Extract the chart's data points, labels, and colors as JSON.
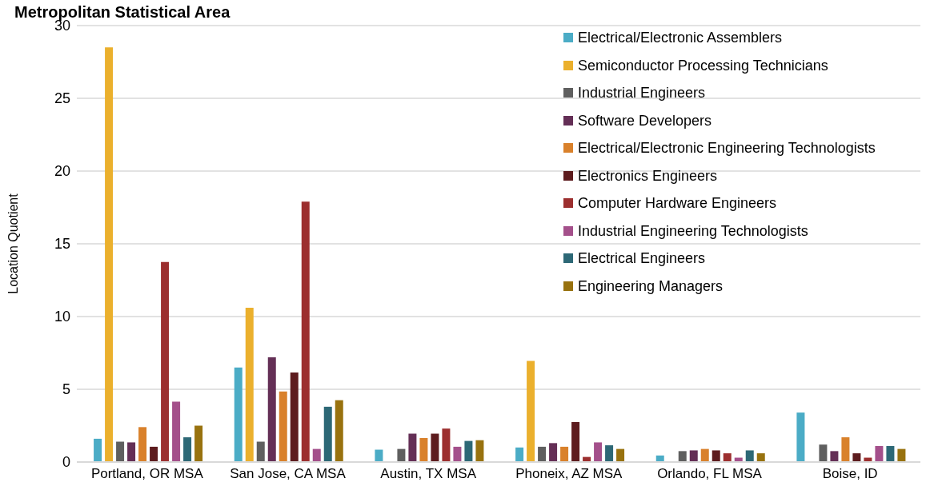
{
  "chart_data": {
    "type": "bar",
    "title": "Metropolitan Statistical Area",
    "ylabel": "Location Quotient",
    "categories": [
      "Portland, OR MSA",
      "San Jose, CA MSA",
      "Austin, TX MSA",
      "Phoneix, AZ MSA",
      "Orlando, FL MSA",
      "Boise, ID"
    ],
    "series": [
      {
        "name": "Electrical/Electronic Assemblers",
        "color": "#4bacc6",
        "values": [
          1.6,
          6.5,
          0.85,
          1.0,
          0.45,
          3.4
        ]
      },
      {
        "name": "Semiconductor Processing Technicians",
        "color": "#ebb02d",
        "values": [
          28.5,
          10.6,
          null,
          6.95,
          null,
          null
        ]
      },
      {
        "name": "Industrial Engineers",
        "color": "#5f5f5f",
        "values": [
          1.4,
          1.4,
          0.9,
          1.05,
          0.75,
          1.2
        ]
      },
      {
        "name": "Software Developers",
        "color": "#642f56",
        "values": [
          1.35,
          7.2,
          1.95,
          1.3,
          0.8,
          0.75
        ]
      },
      {
        "name": "Electrical/Electronic Engineering Technologists",
        "color": "#d9812b",
        "values": [
          2.4,
          4.85,
          1.65,
          1.05,
          0.9,
          1.7
        ]
      },
      {
        "name": "Electronics Engineers",
        "color": "#5d1c1e",
        "values": [
          1.05,
          6.15,
          1.95,
          2.75,
          0.8,
          0.6
        ]
      },
      {
        "name": "Computer Hardware Engineers",
        "color": "#9c2f2f",
        "values": [
          13.75,
          17.9,
          2.3,
          0.35,
          0.6,
          0.3
        ]
      },
      {
        "name": "Industrial Engineering Technologists",
        "color": "#a4508b",
        "values": [
          4.15,
          0.9,
          1.05,
          1.35,
          0.3,
          1.1
        ]
      },
      {
        "name": "Electrical Engineers",
        "color": "#2d6876",
        "values": [
          1.7,
          3.8,
          1.45,
          1.15,
          0.8,
          1.1
        ]
      },
      {
        "name": "Engineering Managers",
        "color": "#98720f",
        "values": [
          2.5,
          4.25,
          1.5,
          0.9,
          0.6,
          0.9
        ]
      }
    ],
    "ylim": [
      0,
      30
    ],
    "yticks": [
      0,
      5,
      10,
      15,
      20,
      25,
      30
    ],
    "grid": "y",
    "legend": "top right"
  }
}
